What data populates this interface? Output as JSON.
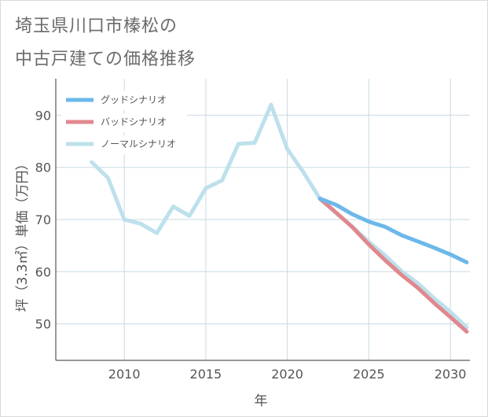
{
  "title": {
    "line1": "埼玉県川口市榛松の",
    "line2": "中古戸建ての価格推移"
  },
  "colors": {
    "good": "#6cb8ea",
    "bad": "#e0888e",
    "normal": "#bde0ec",
    "grid": "#c9d9e2",
    "axis": "#333333"
  },
  "chart_data": {
    "type": "line",
    "title": "埼玉県川口市榛松の中古戸建ての価格推移",
    "xlabel": "年",
    "ylabel": "坪（3.3㎡）単価（万円）",
    "xlim": [
      2005.8,
      2031.2
    ],
    "ylim": [
      43,
      97
    ],
    "xticks": [
      2010,
      2015,
      2020,
      2025,
      2030
    ],
    "yticks": [
      50,
      60,
      70,
      80,
      90
    ],
    "legend_position": "top-left",
    "series": [
      {
        "name": "グッドシナリオ",
        "color_key": "good",
        "x": [
          2022,
          2023,
          2024,
          2025,
          2026,
          2027,
          2028,
          2029,
          2030,
          2031
        ],
        "y": [
          74,
          72.8,
          71,
          69.6,
          68.6,
          67,
          65.8,
          64.6,
          63.3,
          61.8
        ]
      },
      {
        "name": "バッドシナリオ",
        "color_key": "bad",
        "x": [
          2022,
          2023,
          2024,
          2025,
          2026,
          2027,
          2028,
          2029,
          2030,
          2031
        ],
        "y": [
          74,
          71.3,
          68.5,
          65.2,
          62.2,
          59.4,
          56.9,
          54,
          51.3,
          48.5
        ]
      },
      {
        "name": "ノーマルシナリオ",
        "color_key": "normal",
        "x": [
          2008,
          2009,
          2010,
          2011,
          2012,
          2013,
          2014,
          2015,
          2016,
          2017,
          2018,
          2019,
          2020,
          2021,
          2022,
          2023,
          2024,
          2025,
          2026,
          2027,
          2028,
          2029,
          2030,
          2031
        ],
        "y": [
          81,
          78,
          70,
          69.2,
          67.4,
          72.5,
          70.7,
          76,
          77.5,
          84.5,
          84.7,
          92,
          83.5,
          79,
          74,
          71.2,
          68.6,
          65.7,
          63.1,
          60.1,
          57.8,
          54.9,
          52.3,
          49.3
        ]
      }
    ]
  }
}
